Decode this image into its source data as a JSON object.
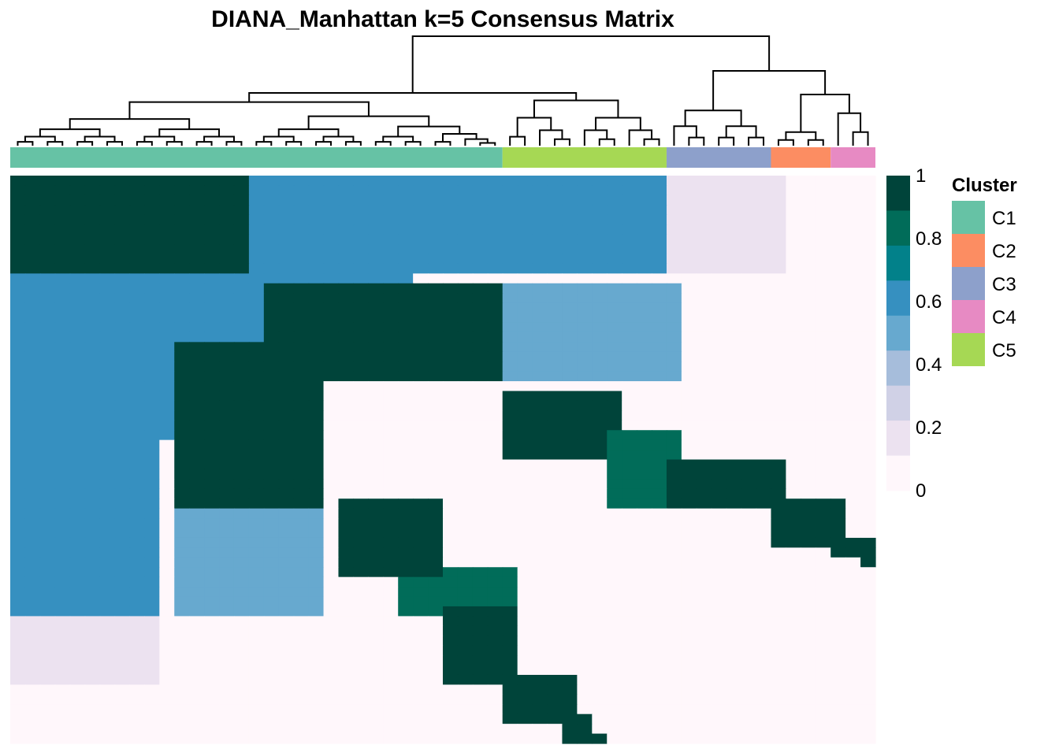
{
  "chart_data": {
    "type": "heatmap",
    "title": "DIANA_Manhattan k=5 Consensus Matrix",
    "colorbar": {
      "min": 0,
      "max": 1,
      "ticks": [
        "1",
        "0.8",
        "0.6",
        "0.4",
        "0.2",
        "0"
      ],
      "colors": [
        "#00443A",
        "#016C59",
        "#02818A",
        "#3690C0",
        "#67A9CF",
        "#A6BDDB",
        "#D0D1E6",
        "#ECE2F0",
        "#FFF7FB"
      ]
    },
    "legend": {
      "title": "Cluster",
      "placement": "right",
      "entries": [
        {
          "label": "C1",
          "color": "#66C2A5"
        },
        {
          "label": "C2",
          "color": "#FC8D62"
        },
        {
          "label": "C3",
          "color": "#8DA0CB"
        },
        {
          "label": "C4",
          "color": "#E78AC3"
        },
        {
          "label": "C5",
          "color": "#A6D854"
        }
      ]
    },
    "column_order_clusters": [
      {
        "cluster": "C1",
        "n_samples": 33
      },
      {
        "cluster": "C5",
        "n_samples": 11
      },
      {
        "cluster": "C3",
        "n_samples": 7
      },
      {
        "cluster": "C2",
        "n_samples": 4
      },
      {
        "cluster": "C4",
        "n_samples": 3
      }
    ],
    "blocks": [
      {
        "rows": [
          0,
          9
        ],
        "cols": [
          0,
          16
        ],
        "value": 0.98
      },
      {
        "rows": [
          0,
          9
        ],
        "cols": [
          16,
          44
        ],
        "value": 0.62
      },
      {
        "rows": [
          0,
          9
        ],
        "cols": [
          44,
          51
        ],
        "value": 0.15
      },
      {
        "rows": [
          10,
          26
        ],
        "cols": [
          0,
          16
        ],
        "value": 0.65
      },
      {
        "rows": [
          11,
          20
        ],
        "cols": [
          17,
          33
        ],
        "value": 0.98
      },
      {
        "rows": [
          11,
          20
        ],
        "cols": [
          33,
          44
        ],
        "value": 0.45
      },
      {
        "rows": [
          22,
          28
        ],
        "cols": [
          33,
          40
        ],
        "value": 0.98
      },
      {
        "rows": [
          26,
          33
        ],
        "cols": [
          40,
          44
        ],
        "value": 0.92
      },
      {
        "rows": [
          29,
          33
        ],
        "cols": [
          44,
          51
        ],
        "value": 0.95
      },
      {
        "rows": [
          33,
          37
        ],
        "cols": [
          51,
          55
        ],
        "value": 0.95
      },
      {
        "rows": [
          37,
          38
        ],
        "cols": [
          55,
          57
        ],
        "value": 0.97
      },
      {
        "rows": [
          38,
          39
        ],
        "cols": [
          57,
          58
        ],
        "value": 0.99
      }
    ]
  }
}
